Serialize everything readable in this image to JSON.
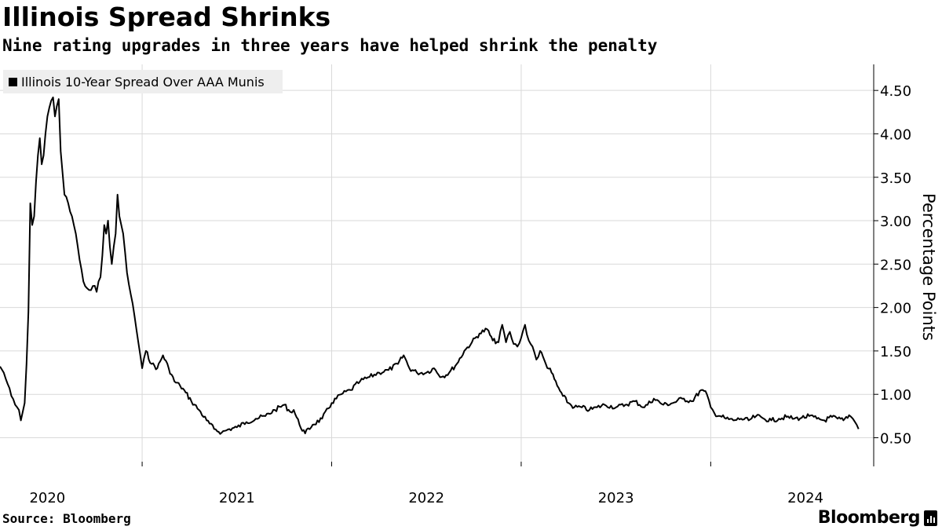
{
  "header": {
    "title": "Illinois Spread Shrinks",
    "subtitle": "Nine rating upgrades in three years have helped shrink the penalty"
  },
  "legend": {
    "label": "Illinois 10-Year Spread Over AAA Munis"
  },
  "footer": {
    "source": "Source: Bloomberg",
    "brand": "Bloomberg"
  },
  "colors": {
    "line": "#000000",
    "grid": "#d9d9d9",
    "legend_bg": "#eeeeee"
  },
  "chart_data": {
    "type": "line",
    "title": "Illinois Spread Shrinks",
    "subtitle": "Nine rating upgrades in three years have helped shrink the penalty",
    "ylabel": "Percentage Points",
    "xlabel": "",
    "ylim": [
      0.17,
      4.8
    ],
    "xlim": [
      2019.75,
      2024.36
    ],
    "y_ticks": [
      0.5,
      1.0,
      1.5,
      2.0,
      2.5,
      3.0,
      3.5,
      4.0,
      4.5
    ],
    "y_tick_labels": [
      "0.50",
      "1.00",
      "1.50",
      "2.00",
      "2.50",
      "3.00",
      "3.50",
      "4.00",
      "4.50"
    ],
    "x_ticks": [
      2020.0,
      2021.0,
      2022.0,
      2023.0,
      2024.0
    ],
    "x_tick_labels": [
      "2020",
      "2021",
      "2022",
      "2023",
      "2024"
    ],
    "x_gridlines": [
      2020.5,
      2021.5,
      2022.5,
      2023.5
    ],
    "grid": true,
    "legend_position": "top-left",
    "series": [
      {
        "name": "Illinois 10-Year Spread Over AAA Munis",
        "x": [
          2019.75,
          2019.77,
          2019.79,
          2019.81,
          2019.83,
          2019.85,
          2019.86,
          2019.88,
          2019.89,
          2019.9,
          2019.91,
          2019.92,
          2019.93,
          2019.94,
          2019.95,
          2019.96,
          2019.97,
          2019.98,
          2019.99,
          2020.0,
          2020.01,
          2020.02,
          2020.03,
          2020.04,
          2020.05,
          2020.06,
          2020.07,
          2020.08,
          2020.09,
          2020.11,
          2020.13,
          2020.15,
          2020.17,
          2020.19,
          2020.21,
          2020.23,
          2020.25,
          2020.26,
          2020.27,
          2020.28,
          2020.29,
          2020.3,
          2020.31,
          2020.32,
          2020.33,
          2020.34,
          2020.35,
          2020.36,
          2020.37,
          2020.38,
          2020.4,
          2020.42,
          2020.44,
          2020.46,
          2020.48,
          2020.5,
          2020.52,
          2020.55,
          2020.58,
          2020.61,
          2020.64,
          2020.67,
          2020.7,
          2020.73,
          2020.76,
          2020.8,
          2020.84,
          2020.88,
          2020.92,
          2020.96,
          2021.0,
          2021.05,
          2021.1,
          2021.15,
          2021.2,
          2021.25,
          2021.28,
          2021.3,
          2021.33,
          2021.36,
          2021.4,
          2021.45,
          2021.5,
          2021.55,
          2021.6,
          2021.65,
          2021.7,
          2021.75,
          2021.8,
          2021.85,
          2021.88,
          2021.91,
          2021.95,
          2022.0,
          2022.04,
          2022.08,
          2022.12,
          2022.16,
          2022.2,
          2022.24,
          2022.28,
          2022.32,
          2022.35,
          2022.38,
          2022.4,
          2022.42,
          2022.44,
          2022.46,
          2022.48,
          2022.5,
          2022.52,
          2022.54,
          2022.56,
          2022.58,
          2022.6,
          2022.63,
          2022.66,
          2022.69,
          2022.72,
          2022.75,
          2022.78,
          2022.82,
          2022.86,
          2022.9,
          2022.94,
          2023.0,
          2023.05,
          2023.1,
          2023.15,
          2023.2,
          2023.25,
          2023.3,
          2023.35,
          2023.4,
          2023.45,
          2023.48,
          2023.5,
          2023.52,
          2023.55,
          2023.58,
          2023.62,
          2023.66,
          2023.7,
          2023.74,
          2023.78,
          2023.82,
          2023.86,
          2023.9,
          2023.94,
          2023.98,
          2024.02,
          2024.06,
          2024.1,
          2024.14,
          2024.17,
          2024.2,
          2024.23,
          2024.25,
          2024.27,
          2024.28
        ],
        "values": [
          1.32,
          1.25,
          1.12,
          0.98,
          0.88,
          0.82,
          0.7,
          0.9,
          1.35,
          1.95,
          3.2,
          2.95,
          3.05,
          3.45,
          3.75,
          3.95,
          3.65,
          3.75,
          4.0,
          4.2,
          4.3,
          4.38,
          4.42,
          4.2,
          4.32,
          4.4,
          3.8,
          3.55,
          3.3,
          3.2,
          3.05,
          2.85,
          2.55,
          2.3,
          2.22,
          2.2,
          2.25,
          2.18,
          2.3,
          2.35,
          2.6,
          2.95,
          2.85,
          3.0,
          2.7,
          2.5,
          2.7,
          2.85,
          3.3,
          3.05,
          2.85,
          2.4,
          2.15,
          1.9,
          1.6,
          1.3,
          1.5,
          1.35,
          1.3,
          1.45,
          1.3,
          1.15,
          1.1,
          1.02,
          0.92,
          0.82,
          0.7,
          0.6,
          0.56,
          0.6,
          0.62,
          0.68,
          0.72,
          0.75,
          0.82,
          0.88,
          0.8,
          0.82,
          0.65,
          0.55,
          0.65,
          0.72,
          0.9,
          1.0,
          1.05,
          1.15,
          1.2,
          1.25,
          1.28,
          1.35,
          1.45,
          1.3,
          1.25,
          1.25,
          1.3,
          1.2,
          1.25,
          1.35,
          1.5,
          1.6,
          1.7,
          1.75,
          1.62,
          1.6,
          1.8,
          1.6,
          1.72,
          1.58,
          1.55,
          1.65,
          1.8,
          1.62,
          1.55,
          1.4,
          1.5,
          1.35,
          1.25,
          1.1,
          0.98,
          0.9,
          0.85,
          0.85,
          0.82,
          0.85,
          0.88,
          0.85,
          0.88,
          0.92,
          0.85,
          0.95,
          0.88,
          0.9,
          0.95,
          0.92,
          1.05,
          1.0,
          0.85,
          0.78,
          0.75,
          0.72,
          0.7,
          0.72,
          0.7,
          0.75,
          0.72,
          0.7,
          0.72,
          0.74,
          0.72,
          0.73,
          0.75,
          0.72,
          0.7,
          0.74,
          0.72,
          0.7,
          0.76,
          0.72,
          0.65,
          0.6
        ]
      }
    ]
  }
}
